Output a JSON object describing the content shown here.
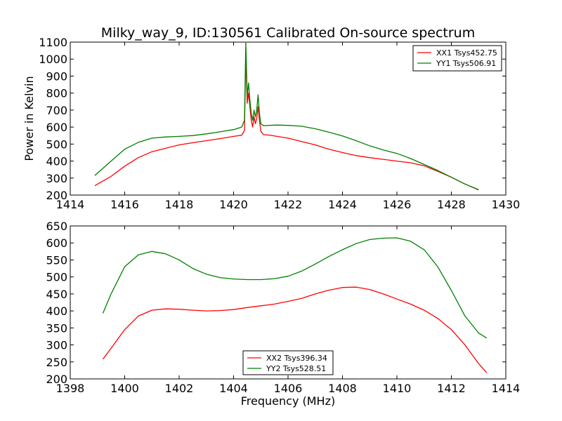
{
  "figure": {
    "title": "Milky_way_9, ID:130561 Calibrated On-source spectrum",
    "xlabel": "Frequency (MHz)",
    "ylabel": "Power in Kelvin"
  },
  "chart_data": [
    {
      "type": "line",
      "xlim": [
        1414,
        1430
      ],
      "ylim": [
        200,
        1100
      ],
      "xticks": [
        1414,
        1416,
        1418,
        1420,
        1422,
        1424,
        1426,
        1428,
        1430
      ],
      "yticks": [
        200,
        300,
        400,
        500,
        600,
        700,
        800,
        900,
        1000,
        1100
      ],
      "legend_position": "top-right",
      "series": [
        {
          "name": "XX1 Tsys452.75",
          "color": "#ff0000",
          "x": [
            1414.9,
            1415.5,
            1416.0,
            1416.5,
            1417.0,
            1417.5,
            1418.0,
            1418.5,
            1419.0,
            1419.5,
            1420.0,
            1420.3,
            1420.4,
            1420.45,
            1420.5,
            1420.55,
            1420.6,
            1420.65,
            1420.7,
            1420.75,
            1420.8,
            1420.85,
            1420.9,
            1420.95,
            1421.0,
            1421.1,
            1421.3,
            1421.6,
            1422.0,
            1422.5,
            1423.0,
            1423.5,
            1424.0,
            1424.5,
            1425.0,
            1425.5,
            1426.0,
            1426.5,
            1427.0,
            1427.5,
            1428.0,
            1428.5,
            1429.0
          ],
          "y": [
            255,
            310,
            370,
            420,
            455,
            475,
            495,
            508,
            520,
            532,
            545,
            552,
            580,
            1020,
            740,
            800,
            720,
            640,
            600,
            660,
            620,
            650,
            720,
            640,
            575,
            555,
            553,
            545,
            535,
            515,
            495,
            470,
            450,
            432,
            420,
            410,
            400,
            390,
            372,
            340,
            305,
            265,
            230
          ]
        },
        {
          "name": "YY1 Tsys506.91",
          "color": "#008000",
          "x": [
            1414.9,
            1415.5,
            1416.0,
            1416.5,
            1417.0,
            1417.5,
            1418.0,
            1418.5,
            1419.0,
            1419.5,
            1420.0,
            1420.3,
            1420.4,
            1420.45,
            1420.5,
            1420.55,
            1420.6,
            1420.65,
            1420.7,
            1420.75,
            1420.8,
            1420.85,
            1420.9,
            1420.95,
            1421.0,
            1421.1,
            1421.3,
            1421.6,
            1422.0,
            1422.5,
            1423.0,
            1423.5,
            1424.0,
            1424.5,
            1425.0,
            1425.5,
            1426.0,
            1426.5,
            1427.0,
            1427.5,
            1428.0,
            1428.5,
            1429.0
          ],
          "y": [
            315,
            400,
            470,
            510,
            535,
            542,
            545,
            550,
            560,
            572,
            585,
            600,
            640,
            1100,
            780,
            860,
            760,
            680,
            640,
            700,
            660,
            700,
            790,
            680,
            620,
            608,
            610,
            612,
            610,
            605,
            590,
            570,
            548,
            520,
            490,
            465,
            445,
            415,
            380,
            345,
            305,
            265,
            232
          ]
        }
      ]
    },
    {
      "type": "line",
      "xlim": [
        1398,
        1414
      ],
      "ylim": [
        200,
        650
      ],
      "xticks": [
        1398,
        1400,
        1402,
        1404,
        1406,
        1408,
        1410,
        1412,
        1414
      ],
      "yticks": [
        200,
        250,
        300,
        350,
        400,
        450,
        500,
        550,
        600,
        650
      ],
      "legend_position": "bottom-center",
      "series": [
        {
          "name": "XX2 Tsys396.34",
          "color": "#ff0000",
          "x": [
            1399.2,
            1399.5,
            1400.0,
            1400.5,
            1401.0,
            1401.5,
            1402.0,
            1402.5,
            1403.0,
            1403.5,
            1404.0,
            1404.5,
            1405.0,
            1405.5,
            1406.0,
            1406.5,
            1407.0,
            1407.5,
            1408.0,
            1408.5,
            1409.0,
            1409.5,
            1410.0,
            1410.5,
            1411.0,
            1411.5,
            1412.0,
            1412.5,
            1413.0,
            1413.3
          ],
          "y": [
            258,
            290,
            345,
            385,
            402,
            406,
            405,
            402,
            400,
            401,
            404,
            410,
            415,
            420,
            428,
            437,
            450,
            461,
            469,
            470,
            463,
            450,
            435,
            420,
            402,
            378,
            345,
            300,
            245,
            218
          ]
        },
        {
          "name": "YY2 Tsys528.51",
          "color": "#008000",
          "x": [
            1399.2,
            1399.5,
            1400.0,
            1400.5,
            1401.0,
            1401.5,
            1402.0,
            1402.5,
            1403.0,
            1403.5,
            1404.0,
            1404.5,
            1405.0,
            1405.5,
            1406.0,
            1406.5,
            1407.0,
            1407.5,
            1408.0,
            1408.5,
            1409.0,
            1409.5,
            1410.0,
            1410.5,
            1411.0,
            1411.5,
            1412.0,
            1412.5,
            1413.0,
            1413.3
          ],
          "y": [
            393,
            450,
            530,
            565,
            575,
            568,
            550,
            525,
            508,
            498,
            494,
            492,
            492,
            495,
            502,
            517,
            538,
            560,
            580,
            598,
            610,
            614,
            615,
            605,
            580,
            530,
            460,
            385,
            335,
            320
          ]
        }
      ]
    }
  ]
}
